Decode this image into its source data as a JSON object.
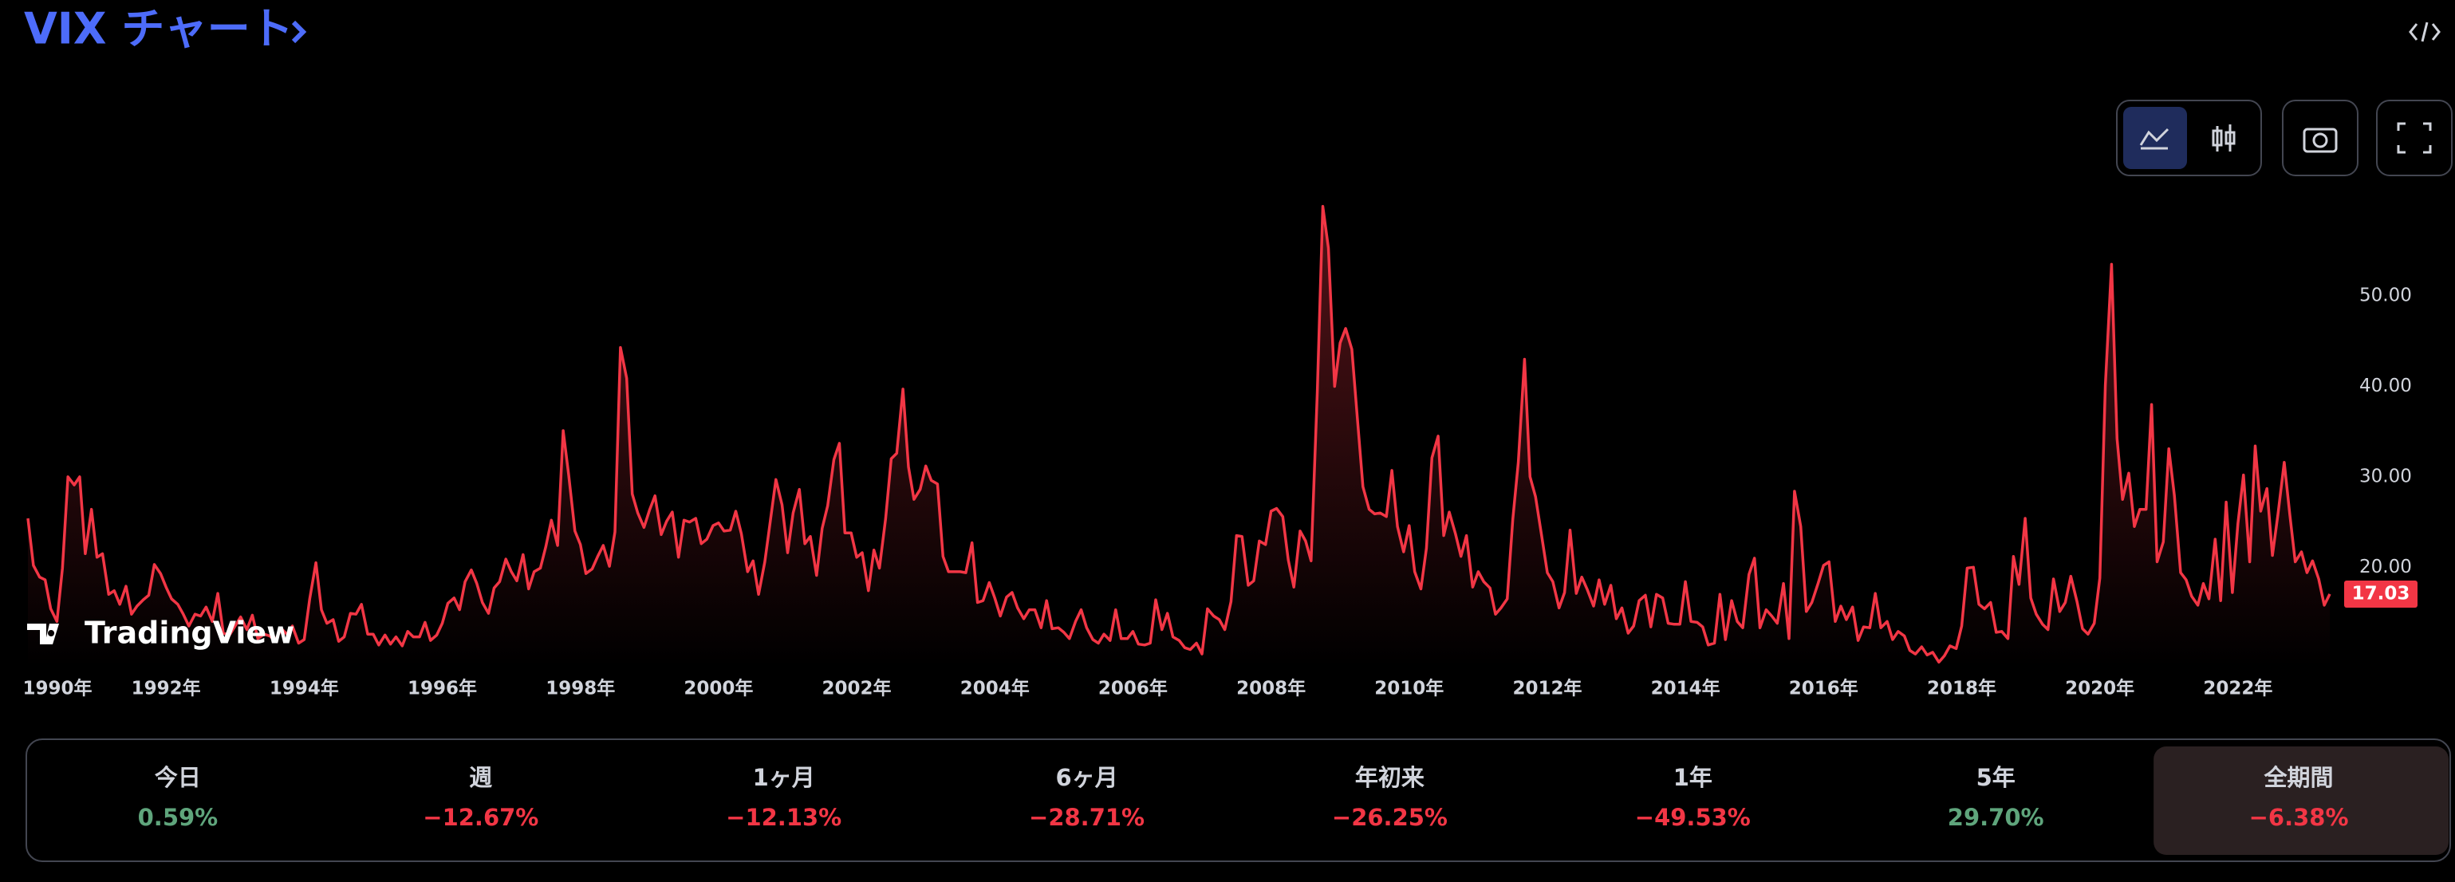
{
  "header": {
    "title": "VIX チャート"
  },
  "watermark": "TradingView",
  "chart_data": {
    "type": "line",
    "color": "#f23645",
    "grid": false,
    "xlim": [
      1990,
      2023.33
    ],
    "ylim": [
      9,
      62
    ],
    "xticks": [
      {
        "value": 1990,
        "label": "1990年"
      },
      {
        "value": 1992,
        "label": "1992年"
      },
      {
        "value": 1994,
        "label": "1994年"
      },
      {
        "value": 1996,
        "label": "1996年"
      },
      {
        "value": 1998,
        "label": "1998年"
      },
      {
        "value": 2000,
        "label": "2000年"
      },
      {
        "value": 2002,
        "label": "2002年"
      },
      {
        "value": 2004,
        "label": "2004年"
      },
      {
        "value": 2006,
        "label": "2006年"
      },
      {
        "value": 2008,
        "label": "2008年"
      },
      {
        "value": 2010,
        "label": "2010年"
      },
      {
        "value": 2012,
        "label": "2012年"
      },
      {
        "value": 2014,
        "label": "2014年"
      },
      {
        "value": 2016,
        "label": "2016年"
      },
      {
        "value": 2018,
        "label": "2018年"
      },
      {
        "value": 2020,
        "label": "2020年"
      },
      {
        "value": 2022,
        "label": "2022年"
      }
    ],
    "yticks": [
      {
        "value": 20,
        "label": "20.00"
      },
      {
        "value": 30,
        "label": "30.00"
      },
      {
        "value": 40,
        "label": "40.00"
      },
      {
        "value": 50,
        "label": "50.00"
      }
    ],
    "last_price": {
      "value": 17.03,
      "label": "17.03"
    },
    "x": [
      1990,
      1990.08,
      1990.17,
      1990.25,
      1990.33,
      1990.42,
      1990.5,
      1990.58,
      1990.67,
      1990.75,
      1990.83,
      1990.92,
      1991,
      1991.08,
      1991.17,
      1991.25,
      1991.33,
      1991.42,
      1991.5,
      1991.58,
      1991.67,
      1991.75,
      1991.83,
      1991.92,
      1992,
      1992.08,
      1992.17,
      1992.25,
      1992.33,
      1992.42,
      1992.5,
      1992.58,
      1992.67,
      1992.75,
      1992.83,
      1992.92,
      1993,
      1993.08,
      1993.17,
      1993.25,
      1993.33,
      1993.42,
      1993.5,
      1993.58,
      1993.67,
      1993.75,
      1993.83,
      1993.92,
      1994,
      1994.08,
      1994.17,
      1994.25,
      1994.33,
      1994.42,
      1994.5,
      1994.58,
      1994.67,
      1994.75,
      1994.83,
      1994.92,
      1995,
      1995.08,
      1995.17,
      1995.25,
      1995.33,
      1995.42,
      1995.5,
      1995.58,
      1995.67,
      1995.75,
      1995.83,
      1995.92,
      1996,
      1996.08,
      1996.17,
      1996.25,
      1996.33,
      1996.42,
      1996.5,
      1996.58,
      1996.67,
      1996.75,
      1996.83,
      1996.92,
      1997,
      1997.08,
      1997.17,
      1997.25,
      1997.33,
      1997.42,
      1997.5,
      1997.58,
      1997.67,
      1997.75,
      1997.83,
      1997.92,
      1998,
      1998.08,
      1998.17,
      1998.25,
      1998.33,
      1998.42,
      1998.5,
      1998.58,
      1998.67,
      1998.75,
      1998.83,
      1998.92,
      1999,
      1999.08,
      1999.17,
      1999.25,
      1999.33,
      1999.42,
      1999.5,
      1999.58,
      1999.67,
      1999.75,
      1999.83,
      1999.92,
      2000,
      2000.08,
      2000.17,
      2000.25,
      2000.33,
      2000.42,
      2000.5,
      2000.58,
      2000.67,
      2000.75,
      2000.83,
      2000.92,
      2001,
      2001.08,
      2001.17,
      2001.25,
      2001.33,
      2001.42,
      2001.5,
      2001.58,
      2001.67,
      2001.75,
      2001.83,
      2001.92,
      2002,
      2002.08,
      2002.17,
      2002.25,
      2002.33,
      2002.42,
      2002.5,
      2002.58,
      2002.67,
      2002.75,
      2002.83,
      2002.92,
      2003,
      2003.08,
      2003.17,
      2003.25,
      2003.33,
      2003.42,
      2003.5,
      2003.58,
      2003.67,
      2003.75,
      2003.83,
      2003.92,
      2004,
      2004.08,
      2004.17,
      2004.25,
      2004.33,
      2004.42,
      2004.5,
      2004.58,
      2004.67,
      2004.75,
      2004.83,
      2004.92,
      2005,
      2005.08,
      2005.17,
      2005.25,
      2005.33,
      2005.42,
      2005.5,
      2005.58,
      2005.67,
      2005.75,
      2005.83,
      2005.92,
      2006,
      2006.08,
      2006.17,
      2006.25,
      2006.33,
      2006.42,
      2006.5,
      2006.58,
      2006.67,
      2006.75,
      2006.83,
      2006.92,
      2007,
      2007.08,
      2007.17,
      2007.25,
      2007.33,
      2007.42,
      2007.5,
      2007.58,
      2007.67,
      2007.75,
      2007.83,
      2007.92,
      2008,
      2008.08,
      2008.17,
      2008.25,
      2008.33,
      2008.42,
      2008.5,
      2008.58,
      2008.67,
      2008.75,
      2008.83,
      2008.92,
      2009,
      2009.08,
      2009.17,
      2009.25,
      2009.33,
      2009.42,
      2009.5,
      2009.58,
      2009.67,
      2009.75,
      2009.83,
      2009.92,
      2010,
      2010.08,
      2010.17,
      2010.25,
      2010.33,
      2010.42,
      2010.5,
      2010.58,
      2010.67,
      2010.75,
      2010.83,
      2010.92,
      2011,
      2011.08,
      2011.17,
      2011.25,
      2011.33,
      2011.42,
      2011.5,
      2011.58,
      2011.67,
      2011.75,
      2011.83,
      2011.92,
      2012,
      2012.08,
      2012.17,
      2012.25,
      2012.33,
      2012.42,
      2012.5,
      2012.58,
      2012.67,
      2012.75,
      2012.83,
      2012.92,
      2013,
      2013.08,
      2013.17,
      2013.25,
      2013.33,
      2013.42,
      2013.5,
      2013.58,
      2013.67,
      2013.75,
      2013.83,
      2013.92,
      2014,
      2014.08,
      2014.17,
      2014.25,
      2014.33,
      2014.42,
      2014.5,
      2014.58,
      2014.67,
      2014.75,
      2014.83,
      2014.92,
      2015,
      2015.08,
      2015.17,
      2015.25,
      2015.33,
      2015.42,
      2015.5,
      2015.58,
      2015.67,
      2015.75,
      2015.83,
      2015.92,
      2016,
      2016.08,
      2016.17,
      2016.25,
      2016.33,
      2016.42,
      2016.5,
      2016.58,
      2016.67,
      2016.75,
      2016.83,
      2016.92,
      2017,
      2017.08,
      2017.17,
      2017.25,
      2017.33,
      2017.42,
      2017.5,
      2017.58,
      2017.67,
      2017.75,
      2017.83,
      2017.92,
      2018,
      2018.08,
      2018.17,
      2018.25,
      2018.33,
      2018.42,
      2018.5,
      2018.58,
      2018.67,
      2018.75,
      2018.83,
      2018.92,
      2019,
      2019.08,
      2019.17,
      2019.25,
      2019.33,
      2019.42,
      2019.5,
      2019.58,
      2019.67,
      2019.75,
      2019.83,
      2019.92,
      2020,
      2020.08,
      2020.17,
      2020.25,
      2020.33,
      2020.42,
      2020.5,
      2020.58,
      2020.67,
      2020.75,
      2020.83,
      2020.92,
      2021,
      2021.08,
      2021.17,
      2021.25,
      2021.33,
      2021.42,
      2021.5,
      2021.58,
      2021.67,
      2021.75,
      2021.83,
      2021.92,
      2022,
      2022.08,
      2022.17,
      2022.25,
      2022.33,
      2022.42,
      2022.5,
      2022.58,
      2022.67,
      2022.75,
      2022.83,
      2022.92,
      2023,
      2023.08,
      2023.17,
      2023.25,
      2023.33
    ],
    "values": [
      25.4,
      20.2,
      18.9,
      18.6,
      15.4,
      14.0,
      19.9,
      30.0,
      29.1,
      30.0,
      21.5,
      26.4,
      21.1,
      21.5,
      17.0,
      17.4,
      15.9,
      17.9,
      14.8,
      15.7,
      16.4,
      16.9,
      20.3,
      19.3,
      17.8,
      16.5,
      15.9,
      14.8,
      13.5,
      14.8,
      14.6,
      15.6,
      14.0,
      17.1,
      12.7,
      12.5,
      13.5,
      14.5,
      13.1,
      14.7,
      12.1,
      12.6,
      12.4,
      11.9,
      13.2,
      12.6,
      13.5,
      11.6,
      12.0,
      16.5,
      20.5,
      15.3,
      13.8,
      14.2,
      11.8,
      12.3,
      14.9,
      14.8,
      15.9,
      12.6,
      12.6,
      11.4,
      12.5,
      11.5,
      12.3,
      11.3,
      12.9,
      12.3,
      12.3,
      13.9,
      11.9,
      12.5,
      13.8,
      16.0,
      16.6,
      15.3,
      18.4,
      19.7,
      18.2,
      16.1,
      14.9,
      17.7,
      18.4,
      20.9,
      19.5,
      18.5,
      21.4,
      17.6,
      19.5,
      19.9,
      22.3,
      25.2,
      22.4,
      35.1,
      30.2,
      24.0,
      22.5,
      19.3,
      19.8,
      21.2,
      22.4,
      20.1,
      23.9,
      44.3,
      40.9,
      28.1,
      26.0,
      24.4,
      26.3,
      27.9,
      23.6,
      25.1,
      26.1,
      21.1,
      25.2,
      25.0,
      25.4,
      22.6,
      23.1,
      24.6,
      24.9,
      24.0,
      24.1,
      26.2,
      23.7,
      19.5,
      20.7,
      17.0,
      20.6,
      25.1,
      29.7,
      26.9,
      21.6,
      26.0,
      28.6,
      22.6,
      23.4,
      19.1,
      24.3,
      26.8,
      31.9,
      33.7,
      23.8,
      23.8,
      21.1,
      21.6,
      17.4,
      21.9,
      19.9,
      25.4,
      32.0,
      32.6,
      39.7,
      31.1,
      27.5,
      28.6,
      31.2,
      29.6,
      29.2,
      21.2,
      19.5,
      19.5,
      19.5,
      19.4,
      22.7,
      16.1,
      16.3,
      18.3,
      16.6,
      14.6,
      16.7,
      17.2,
      15.5,
      14.3,
      15.3,
      15.3,
      13.3,
      16.3,
      13.2,
      13.3,
      12.8,
      12.1,
      14.0,
      15.3,
      13.3,
      12.0,
      11.6,
      12.6,
      11.9,
      15.3,
      12.1,
      12.1,
      12.9,
      11.5,
      11.4,
      11.6,
      16.4,
      13.1,
      14.9,
      12.3,
      11.9,
      11.1,
      10.9,
      11.6,
      10.4,
      15.4,
      14.6,
      14.2,
      13.1,
      16.2,
      23.5,
      23.4,
      18.0,
      18.5,
      22.9,
      22.5,
      26.2,
      26.5,
      25.6,
      20.8,
      17.8,
      24.0,
      22.9,
      20.7,
      39.4,
      59.9,
      55.3,
      40.0,
      44.8,
      46.4,
      44.1,
      36.5,
      28.9,
      26.4,
      25.9,
      26.0,
      25.6,
      30.7,
      24.5,
      21.7,
      24.6,
      19.5,
      17.6,
      22.1,
      32.1,
      34.5,
      23.5,
      26.1,
      23.7,
      21.2,
      23.5,
      17.8,
      19.5,
      18.4,
      17.7,
      14.8,
      15.5,
      16.5,
      25.3,
      31.6,
      43.0,
      30.0,
      27.8,
      23.4,
      19.4,
      18.4,
      15.5,
      17.2,
      24.1,
      17.1,
      18.9,
      17.5,
      15.7,
      18.6,
      15.9,
      18.0,
      14.3,
      15.5,
      12.7,
      13.5,
      16.3,
      16.9,
      13.4,
      17.0,
      16.6,
      13.8,
      13.7,
      13.7,
      18.4,
      14.0,
      13.9,
      13.4,
      11.4,
      11.6,
      17.0,
      12.0,
      16.3,
      14.0,
      13.3,
      19.2,
      21.0,
      13.3,
      15.3,
      14.6,
      13.8,
      18.2,
      12.1,
      28.4,
      24.5,
      15.1,
      16.1,
      18.2,
      20.2,
      20.6,
      14.0,
      15.7,
      14.2,
      15.6,
      11.9,
      13.4,
      13.3,
      17.1,
      13.3,
      14.0,
      12.0,
      12.9,
      12.4,
      10.8,
      10.4,
      11.2,
      10.3,
      10.6,
      9.5,
      10.2,
      11.3,
      11.0,
      13.5,
      19.9,
      20.0,
      15.9,
      15.4,
      16.1,
      12.8,
      12.9,
      12.1,
      21.2,
      18.1,
      25.4,
      16.6,
      14.8,
      13.7,
      13.1,
      18.7,
      15.1,
      16.1,
      19.0,
      16.2,
      13.2,
      12.6,
      13.8,
      18.8,
      40.1,
      53.5,
      34.2,
      27.5,
      30.4,
      24.5,
      26.4,
      26.4,
      38.0,
      20.6,
      22.8,
      33.1,
      27.9,
      19.4,
      18.6,
      16.8,
      15.8,
      18.2,
      16.5,
      23.1,
      16.3,
      27.2,
      17.2,
      24.8,
      30.2,
      20.6,
      33.4,
      26.2,
      28.7,
      21.3,
      25.9,
      31.6,
      25.9,
      20.6,
      21.7,
      19.4,
      20.7,
      18.7,
      15.8,
      17.03
    ]
  },
  "performance": {
    "selected_index": 7,
    "up_color": "#5fa57c",
    "down_color": "#f23645",
    "periods": [
      {
        "label": "今日",
        "change": "0.59%",
        "direction": "up"
      },
      {
        "label": "週",
        "change": "−12.67%",
        "direction": "down"
      },
      {
        "label": "1ヶ月",
        "change": "−12.13%",
        "direction": "down"
      },
      {
        "label": "6ヶ月",
        "change": "−28.71%",
        "direction": "down"
      },
      {
        "label": "年初来",
        "change": "−26.25%",
        "direction": "down"
      },
      {
        "label": "1年",
        "change": "−49.53%",
        "direction": "down"
      },
      {
        "label": "5年",
        "change": "29.70%",
        "direction": "up"
      },
      {
        "label": "全期間",
        "change": "−6.38%",
        "direction": "down"
      }
    ]
  }
}
